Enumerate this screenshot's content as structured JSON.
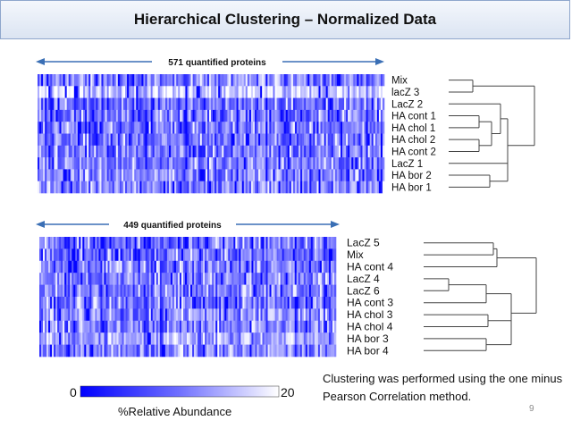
{
  "slide": {
    "title": "Hierarchical Clustering – Normalized Data",
    "page_number": "9",
    "note": "Clustering was performed using the one minus Pearson Correlation method."
  },
  "colors": {
    "low": "#0000ff",
    "high": "#ffffff",
    "arrow": "#3a6fb5",
    "dendrogram": "#444444",
    "title_bar": "#dbe4f2"
  },
  "colorbar": {
    "min_label": "0",
    "max_label": "20",
    "caption": "%Relative Abundance",
    "range": [
      0,
      20
    ]
  },
  "chart_data": [
    {
      "type": "heatmap",
      "title": "571 quantified proteins",
      "n_columns": 571,
      "rows": [
        "Mix",
        "lacZ 3",
        "LacZ 2",
        "HA cont 1",
        "HA chol 1",
        "HA chol 2",
        "HA cont 2",
        "LacZ 1",
        "HA bor 2",
        "HA bor 1"
      ],
      "color_scale": "%Relative Abundance",
      "value_range": [
        0,
        20
      ],
      "dendrogram": {
        "method": "one minus Pearson Correlation",
        "merges": [
          [
            "Mix",
            "lacZ 3"
          ],
          [
            "HA cont 1",
            "HA chol 1"
          ],
          [
            "HA chol 2",
            "HA cont 2"
          ],
          [
            "HA bor 2",
            "HA bor 1"
          ]
        ]
      }
    },
    {
      "type": "heatmap",
      "title": "449 quantified proteins",
      "n_columns": 449,
      "rows": [
        "LacZ 5",
        "Mix",
        "HA cont 4",
        "LacZ 4",
        "LacZ 6",
        "HA cont 3",
        "HA chol 3",
        "HA chol 4",
        "HA bor 3",
        "HA bor 4"
      ],
      "color_scale": "%Relative Abundance",
      "value_range": [
        0,
        20
      ],
      "dendrogram": {
        "method": "one minus Pearson Correlation",
        "merges": [
          [
            "LacZ 5",
            "Mix"
          ],
          [
            "LacZ 4",
            "LacZ 6"
          ],
          [
            "HA chol 3",
            "HA chol 4"
          ],
          [
            "HA bor 3",
            "HA bor 4"
          ]
        ]
      }
    }
  ]
}
